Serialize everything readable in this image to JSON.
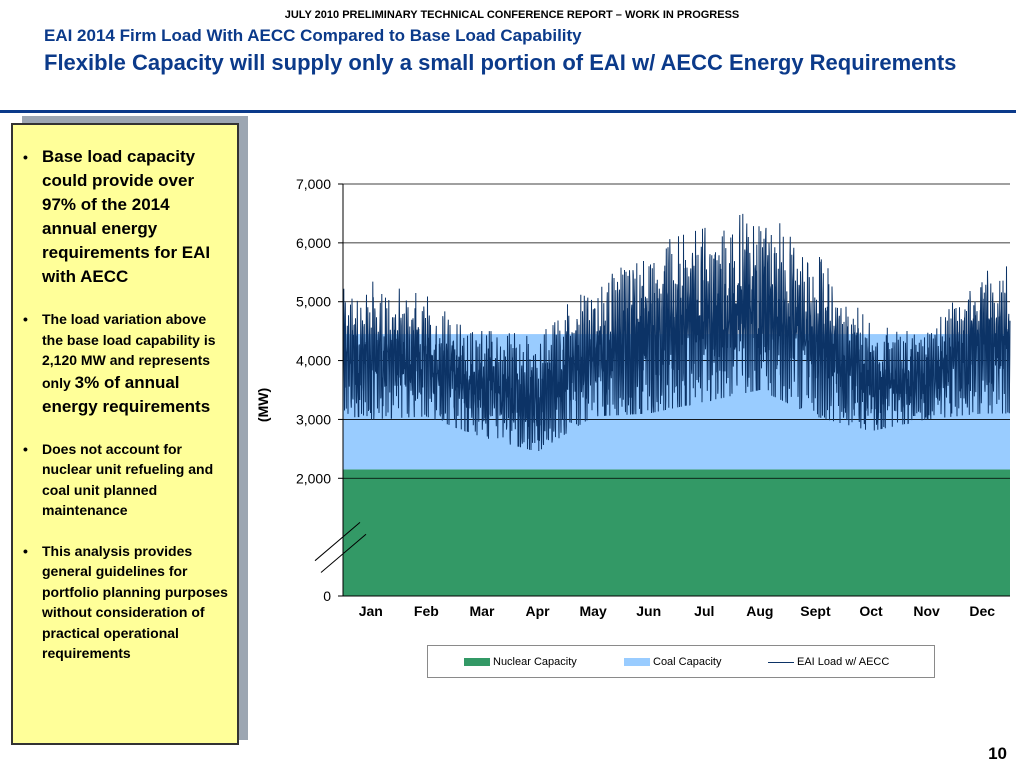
{
  "header": {
    "top_line": "JULY 2010 PRELIMINARY TECHNICAL CONFERENCE REPORT – WORK IN PROGRESS",
    "subtitle": "EAI 2014 Firm Load With AECC Compared to Base Load Capability",
    "title": "Flexible Capacity will supply only a small portion of EAI w/ AECC Energy Requirements"
  },
  "bullets": [
    {
      "text": "Base load capacity could provide over 97% of the 2014 annual energy requirements for EAI with AECC",
      "size": "big"
    },
    {
      "text": "The load variation above the base load capability is 2,120 MW and represents only",
      "tail": "3% of annual energy requirements",
      "size": "mixed"
    },
    {
      "text": "Does not account for nuclear unit refueling and coal unit planned maintenance",
      "size": "small"
    },
    {
      "text": "This analysis provides general guidelines for portfolio planning purposes without consideration of practical operational requirements",
      "size": "small"
    }
  ],
  "chart_data": {
    "type": "area",
    "ylabel": "(MW)",
    "ylim": [
      0,
      7000
    ],
    "yticks": [
      0,
      2000,
      3000,
      4000,
      5000,
      6000,
      7000
    ],
    "ytick_labels": [
      "0",
      "2,000",
      "3,000",
      "4,000",
      "5,000",
      "6,000",
      "7,000"
    ],
    "axis_break": true,
    "months": [
      "Jan",
      "Feb",
      "Mar",
      "Apr",
      "May",
      "Jun",
      "Jul",
      "Aug",
      "Sept",
      "Oct",
      "Nov",
      "Dec"
    ],
    "grid": true,
    "series": [
      {
        "name": "Nuclear Capacity",
        "kind": "band",
        "from": 0,
        "to": 2150,
        "color": "#339966"
      },
      {
        "name": "Coal Capacity",
        "kind": "band",
        "from": 2150,
        "to": 4450,
        "color": "#99ccff"
      },
      {
        "name": "EAI Load w/ AECC",
        "kind": "line",
        "color": "#0c3366",
        "monthly_envelope": [
          {
            "month": "Jan",
            "min": 3000,
            "max": 5350
          },
          {
            "month": "Feb",
            "min": 3050,
            "max": 5100
          },
          {
            "month": "Mar",
            "min": 2700,
            "max": 4500
          },
          {
            "month": "Apr",
            "min": 2450,
            "max": 4500
          },
          {
            "month": "May",
            "min": 3050,
            "max": 5350
          },
          {
            "month": "Jun",
            "min": 3100,
            "max": 5950
          },
          {
            "month": "Jul",
            "min": 3300,
            "max": 6250
          },
          {
            "month": "Aug",
            "min": 3500,
            "max": 6600
          },
          {
            "month": "Sept",
            "min": 3050,
            "max": 5850
          },
          {
            "month": "Oct",
            "min": 2800,
            "max": 4600
          },
          {
            "month": "Nov",
            "min": 3000,
            "max": 4450
          },
          {
            "month": "Dec",
            "min": 3100,
            "max": 5600
          }
        ]
      }
    ],
    "legend_position": "bottom"
  },
  "page_number": "10"
}
